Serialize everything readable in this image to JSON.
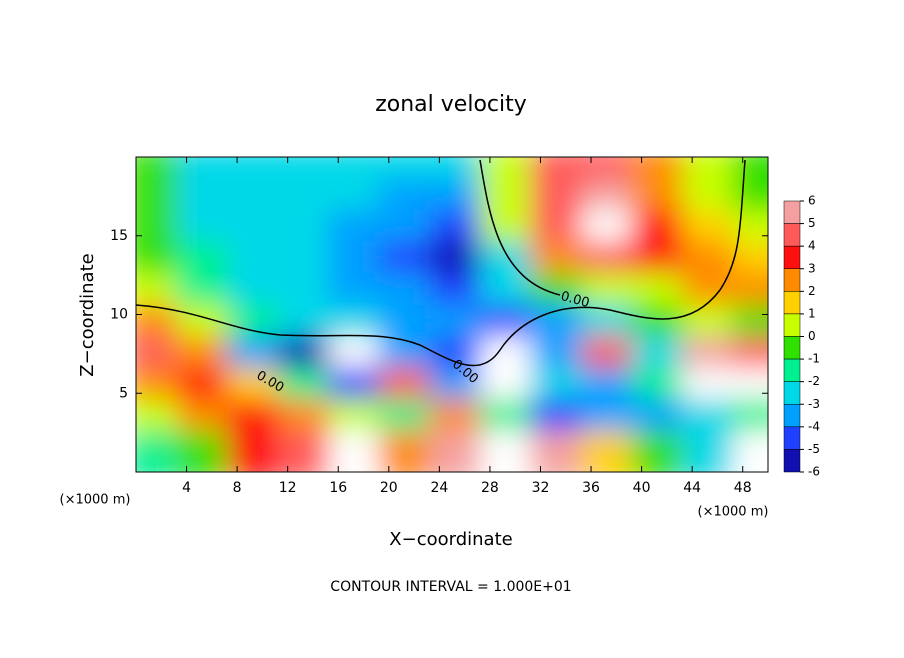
{
  "chart_data": {
    "type": "heatmap",
    "title": "zonal velocity",
    "x_label": "X−coordinate",
    "y_label": "Z−coordinate",
    "x_unit_label": "(×1000 m)",
    "y_unit_label": "(×1000 m)",
    "footnote": "CONTOUR INTERVAL = 1.000E+01",
    "xlim": [
      0,
      50
    ],
    "ylim": [
      0,
      20
    ],
    "xticks": [
      4,
      8,
      12,
      16,
      20,
      24,
      28,
      32,
      36,
      40,
      44,
      48
    ],
    "yticks": [
      5,
      10,
      15
    ],
    "x": [
      2,
      6,
      10,
      14,
      18,
      22,
      26,
      30,
      34,
      38,
      42,
      46,
      50
    ],
    "y": [
      19,
      17,
      15,
      13,
      11,
      9,
      7,
      5,
      3,
      1
    ],
    "z": [
      [
        0,
        -2,
        -2.5,
        -2.5,
        -2.5,
        -2.5,
        -2,
        1,
        5,
        5,
        3,
        1,
        0
      ],
      [
        0,
        -2,
        -2.5,
        -2.5,
        -2.5,
        -3,
        -3,
        1,
        5,
        6,
        3,
        1,
        0
      ],
      [
        0,
        -2,
        -2.5,
        -2.5,
        -3,
        -3,
        -4,
        1,
        5,
        7,
        4,
        2,
        1
      ],
      [
        0,
        -1,
        -2,
        -2.5,
        -3,
        -4,
        -6,
        -2,
        3,
        5,
        4,
        3,
        2
      ],
      [
        1,
        -1,
        -2,
        -2,
        -3,
        -3,
        -4,
        -2,
        0,
        1,
        1,
        3,
        3
      ],
      [
        3,
        1,
        -1,
        -2,
        -2,
        -3,
        -3,
        -4,
        -3,
        -2,
        0,
        1,
        0
      ],
      [
        5,
        3,
        -3,
        -5,
        7,
        -3,
        -4,
        7,
        -3,
        5,
        -2,
        6,
        5
      ],
      [
        3,
        4,
        2,
        -1,
        -4,
        5,
        -3,
        7,
        -2,
        -3,
        -1,
        7,
        7
      ],
      [
        1,
        3,
        4,
        3,
        1,
        -1,
        3,
        -1,
        -4,
        -3,
        -3,
        -2,
        -1
      ],
      [
        -1,
        0,
        4,
        5,
        7,
        3,
        6,
        7,
        6,
        2,
        0,
        -2,
        7
      ]
    ],
    "colorbar_ticks": [
      6,
      5,
      4,
      3,
      2,
      1,
      0,
      -1,
      -2,
      -3,
      -4,
      -5,
      -6
    ],
    "colors": [
      "#f4a0a0",
      "#ff5a5a",
      "#ff1010",
      "#ff8c00",
      "#ffd000",
      "#c8ff00",
      "#30e000",
      "#00f090",
      "#00d8e8",
      "#00a0ff",
      "#2040ff",
      "#1010b0"
    ],
    "over_color": "#ffffff",
    "contour_labels": [
      "0.00",
      "0.00",
      "0.00"
    ]
  }
}
